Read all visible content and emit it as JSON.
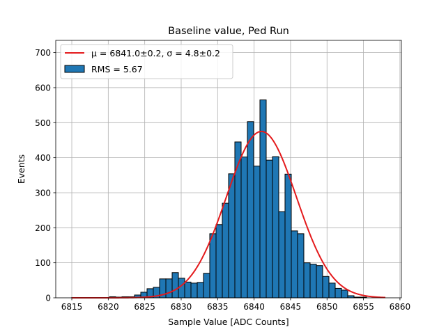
{
  "chart_data": {
    "type": "bar",
    "title": "Baseline value, Ped Run",
    "xlabel": "Sample Value [ADC Counts]",
    "ylabel": "Events",
    "xlim": [
      6812.8,
      6860.2
    ],
    "ylim": [
      0,
      735
    ],
    "xticks": [
      6815,
      6820,
      6825,
      6830,
      6835,
      6840,
      6845,
      6850,
      6855,
      6860
    ],
    "yticks": [
      0,
      100,
      200,
      300,
      400,
      500,
      600,
      700
    ],
    "grid": true,
    "legend_position": "top-left",
    "bin_width": 0.86,
    "histogram": {
      "name": "RMS = 5.67",
      "color": "#1f77b4",
      "bin_left_edges": [
        6815.0,
        6815.86,
        6816.72,
        6817.58,
        6818.44,
        6819.3,
        6820.16,
        6821.02,
        6821.88,
        6822.74,
        6823.6,
        6824.46,
        6825.32,
        6826.18,
        6827.04,
        6827.9,
        6828.76,
        6829.62,
        6830.48,
        6831.34,
        6832.2,
        6833.06,
        6833.92,
        6834.78,
        6835.64,
        6836.5,
        6837.36,
        6838.22,
        6839.08,
        6839.94,
        6840.8,
        6841.66,
        6842.52,
        6843.38,
        6844.24,
        6845.1,
        6845.96,
        6846.82,
        6847.68,
        6848.54,
        6849.4,
        6850.26,
        6851.12,
        6851.98,
        6852.84,
        6853.7,
        6854.56,
        6855.42
      ],
      "counts": [
        1,
        0,
        0,
        0,
        0,
        0,
        3,
        2,
        3,
        3,
        8,
        16,
        26,
        30,
        54,
        54,
        72,
        56,
        45,
        42,
        44,
        70,
        183,
        209,
        270,
        354,
        445,
        402,
        503,
        376,
        565,
        393,
        403,
        246,
        353,
        191,
        183,
        100,
        96,
        92,
        61,
        42,
        27,
        22,
        6,
        2,
        2,
        0
      ]
    },
    "fit": {
      "name": "$\\mu = 6841.0{\\pm}0.2$, $\\sigma = 4.8{\\pm}0.2$",
      "label_text": "μ = 6841.0±0.2, σ = 4.8±0.2",
      "color": "#e41a1c",
      "mu": 6841.0,
      "sigma": 4.8,
      "amplitude": 475,
      "x_range": [
        6815,
        6858
      ]
    }
  }
}
